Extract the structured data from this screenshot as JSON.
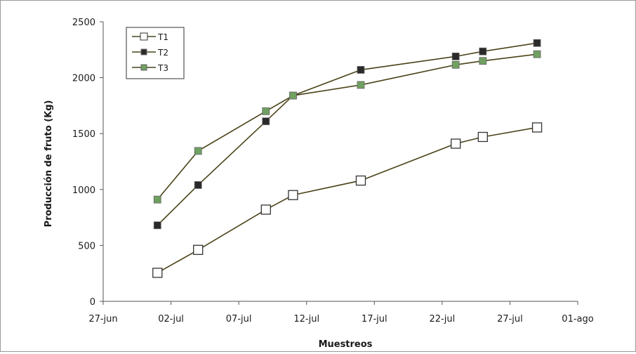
{
  "chart_data": {
    "type": "line",
    "title": "",
    "xlabel": "Muestreos",
    "ylabel": "Producción de fruto (Kg)",
    "ylim": [
      0,
      2500
    ],
    "yticks": [
      0,
      500,
      1000,
      1500,
      2000,
      2500
    ],
    "xlim": [
      "2006-06-27",
      "2006-08-01"
    ],
    "xticks": [
      {
        "date": "2006-06-27",
        "label": "27-jun"
      },
      {
        "date": "2006-07-02",
        "label": "02-jul"
      },
      {
        "date": "2006-07-07",
        "label": "07-jul"
      },
      {
        "date": "2006-07-12",
        "label": "12-jul"
      },
      {
        "date": "2006-07-17",
        "label": "17-jul"
      },
      {
        "date": "2006-07-22",
        "label": "22-jul"
      },
      {
        "date": "2006-07-27",
        "label": "27-jul"
      },
      {
        "date": "2006-08-01",
        "label": "01-ago"
      }
    ],
    "grid": false,
    "legend_position": "top-left",
    "x": [
      "2006-07-01",
      "2006-07-04",
      "2006-07-09",
      "2006-07-11",
      "2006-07-16",
      "2006-07-23",
      "2006-07-25",
      "2006-07-29"
    ],
    "series": [
      {
        "name": "T1",
        "marker": "open-square",
        "color": "#ffffff",
        "values": [
          255,
          460,
          820,
          950,
          1080,
          1410,
          1470,
          1555
        ]
      },
      {
        "name": "T2",
        "marker": "filled-square",
        "color": "#2a2a2a",
        "values": [
          680,
          1040,
          1610,
          1840,
          2070,
          2190,
          2235,
          2310
        ]
      },
      {
        "name": "T3",
        "marker": "filled-square",
        "color": "#6fa060",
        "values": [
          910,
          1345,
          1700,
          1840,
          1935,
          2115,
          2150,
          2210
        ]
      }
    ],
    "line_color": "#4a4318"
  }
}
